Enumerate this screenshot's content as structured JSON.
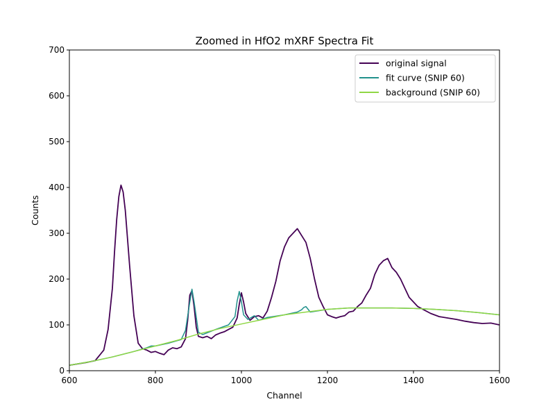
{
  "chart_data": {
    "type": "line",
    "title": "Zoomed in HfO2 mXRF Spectra Fit",
    "xlabel": "Channel",
    "ylabel": "Counts",
    "xlim": [
      600,
      1600
    ],
    "ylim": [
      0,
      700
    ],
    "xticks": [
      600,
      800,
      1000,
      1200,
      1400,
      1600
    ],
    "yticks": [
      0,
      100,
      200,
      300,
      400,
      500,
      600,
      700
    ],
    "grid": false,
    "legend_position": "top-right",
    "series": [
      {
        "name": "original signal",
        "color": "#440154",
        "x": [
          600,
          620,
          640,
          660,
          680,
          690,
          700,
          705,
          710,
          715,
          720,
          725,
          730,
          735,
          740,
          750,
          760,
          770,
          780,
          790,
          800,
          810,
          820,
          830,
          840,
          850,
          860,
          870,
          875,
          880,
          885,
          890,
          895,
          900,
          910,
          920,
          930,
          940,
          950,
          960,
          970,
          980,
          990,
          995,
          1000,
          1005,
          1010,
          1020,
          1030,
          1040,
          1050,
          1060,
          1070,
          1080,
          1090,
          1100,
          1110,
          1120,
          1130,
          1140,
          1150,
          1160,
          1170,
          1180,
          1190,
          1200,
          1210,
          1220,
          1230,
          1240,
          1250,
          1260,
          1270,
          1280,
          1290,
          1300,
          1310,
          1320,
          1330,
          1340,
          1350,
          1360,
          1370,
          1380,
          1390,
          1400,
          1410,
          1420,
          1440,
          1460,
          1480,
          1500,
          1520,
          1540,
          1560,
          1580,
          1600
        ],
        "y": [
          12,
          15,
          18,
          22,
          45,
          90,
          180,
          260,
          330,
          380,
          405,
          390,
          350,
          290,
          230,
          120,
          60,
          48,
          45,
          40,
          42,
          38,
          35,
          45,
          50,
          48,
          52,
          70,
          110,
          165,
          175,
          140,
          95,
          75,
          72,
          75,
          70,
          78,
          82,
          85,
          90,
          95,
          115,
          145,
          170,
          150,
          125,
          110,
          118,
          120,
          115,
          130,
          160,
          195,
          240,
          270,
          290,
          300,
          310,
          295,
          280,
          245,
          200,
          160,
          140,
          122,
          118,
          115,
          118,
          120,
          128,
          130,
          140,
          148,
          165,
          180,
          210,
          230,
          240,
          245,
          225,
          215,
          200,
          180,
          160,
          150,
          140,
          135,
          125,
          118,
          115,
          112,
          108,
          105,
          103,
          104,
          100
        ]
      },
      {
        "name": "fit curve (SNIP 60)",
        "color": "#21918c",
        "x": [
          600,
          650,
          700,
          750,
          780,
          790,
          800,
          830,
          860,
          870,
          880,
          885,
          890,
          900,
          910,
          940,
          970,
          985,
          990,
          995,
          1000,
          1005,
          1015,
          1030,
          1040,
          1060,
          1100,
          1130,
          1140,
          1145,
          1150,
          1160,
          1200,
          1250,
          1300,
          1350,
          1400,
          1450,
          1500,
          1550,
          1600
        ],
        "y": [
          12,
          20,
          30,
          42,
          50,
          54,
          54,
          60,
          68,
          88,
          150,
          178,
          150,
          84,
          79,
          90,
          100,
          118,
          152,
          173,
          150,
          122,
          112,
          120,
          110,
          116,
          122,
          128,
          133,
          138,
          140,
          128,
          134,
          137,
          137,
          137,
          136,
          134,
          131,
          127,
          122
        ]
      },
      {
        "name": "background (SNIP 60)",
        "color": "#8fd744",
        "x": [
          600,
          650,
          700,
          750,
          800,
          850,
          900,
          950,
          1000,
          1050,
          1100,
          1150,
          1200,
          1250,
          1300,
          1350,
          1400,
          1450,
          1500,
          1550,
          1600
        ],
        "y": [
          12,
          20,
          30,
          42,
          54,
          66,
          80,
          92,
          102,
          112,
          122,
          128,
          134,
          137,
          137,
          137,
          136,
          134,
          131,
          127,
          122
        ]
      }
    ]
  }
}
